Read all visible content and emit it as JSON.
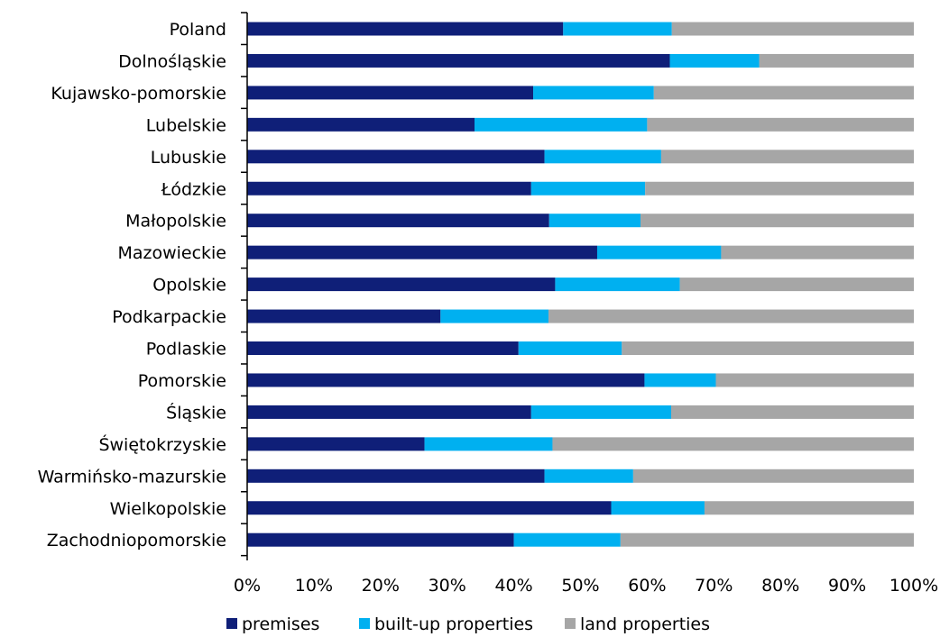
{
  "chart_data": {
    "type": "bar",
    "orientation": "horizontal",
    "stacked": true,
    "stack_mode": "percent",
    "categories": [
      "Poland",
      "Dolnośląskie",
      "Kujawsko-pomorskie",
      "Lubelskie",
      "Lubuskie",
      "Łódzkie",
      "Małopolskie",
      "Mazowieckie",
      "Opolskie",
      "Podkarpackie",
      "Podlaskie",
      "Pomorskie",
      "Śląskie",
      "Świętokrzyskie",
      "Warmińsko-mazurskie",
      "Wielkopolskie",
      "Zachodniopomorskie"
    ],
    "series": [
      {
        "name": "premises",
        "color": "#0F1F78",
        "values": [
          47.4,
          63.4,
          42.9,
          34.1,
          44.6,
          42.6,
          45.3,
          52.5,
          46.2,
          29.0,
          40.7,
          59.6,
          42.6,
          26.6,
          44.6,
          54.6,
          40.0
        ]
      },
      {
        "name": "built-up properties",
        "color": "#00B0F0",
        "values": [
          16.3,
          13.4,
          18.1,
          25.9,
          17.5,
          17.1,
          13.7,
          18.6,
          18.7,
          16.2,
          15.5,
          10.7,
          21.0,
          19.2,
          13.3,
          14.0,
          16.0
        ]
      },
      {
        "name": "land properties",
        "color": "#A6A6A6",
        "values": [
          36.3,
          23.2,
          39.0,
          40.0,
          37.9,
          40.3,
          41.0,
          28.9,
          35.1,
          54.8,
          43.8,
          29.7,
          36.4,
          54.2,
          42.1,
          31.4,
          44.0
        ]
      }
    ],
    "x_ticks": [
      "0%",
      "10%",
      "20%",
      "30%",
      "40%",
      "50%",
      "60%",
      "70%",
      "80%",
      "90%",
      "100%"
    ],
    "xlim": [
      0,
      100
    ],
    "grid": false,
    "legend_position": "bottom",
    "title": "",
    "xlabel": "",
    "ylabel": ""
  }
}
